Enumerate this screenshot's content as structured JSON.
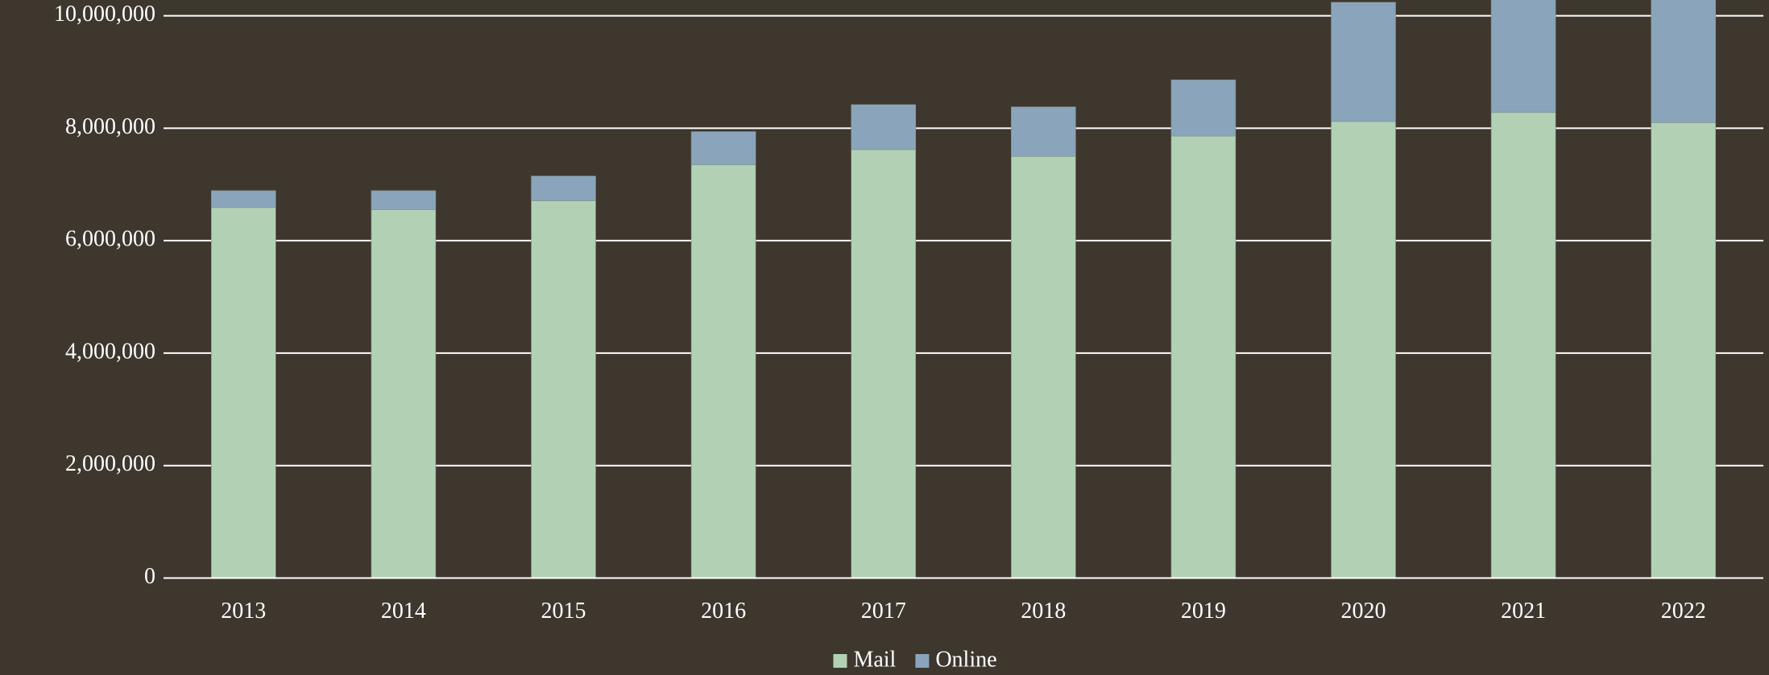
{
  "chart_data": {
    "type": "stacked_bar",
    "categories": [
      "2013",
      "2014",
      "2015",
      "2016",
      "2017",
      "2018",
      "2019",
      "2020",
      "2021",
      "2022"
    ],
    "series": [
      {
        "name": "Mail",
        "color": "#b2d1b4",
        "values": [
          6590000,
          6550000,
          6710000,
          7350000,
          7620000,
          7500000,
          7860000,
          8120000,
          8280000,
          8100000
        ]
      },
      {
        "name": "Online",
        "color": "#8aa5bb",
        "values": [
          300000,
          340000,
          440000,
          590000,
          800000,
          880000,
          1000000,
          2120000,
          2300000,
          2400000
        ]
      }
    ],
    "ylim": [
      0,
      10280000
    ],
    "yticks": [
      0,
      {
        "value": 2000000,
        "label": "2,000,000"
      },
      {
        "value": 4000000,
        "label": "4,000,000"
      },
      {
        "value": 6000000,
        "label": "6,000,000"
      },
      {
        "value": 8000000,
        "label": "8,000,000"
      },
      {
        "value": 10000000,
        "label": "10,000,000"
      }
    ],
    "grid": true,
    "legend": "bottom"
  }
}
